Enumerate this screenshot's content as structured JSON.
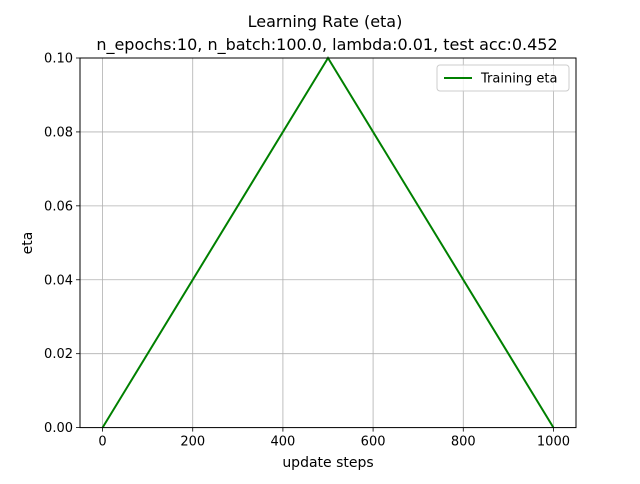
{
  "chart_data": {
    "type": "line",
    "title": "Learning Rate (eta)",
    "subtitle": "n_epochs:10, n_batch:100.0, lambda:0.01, test acc:0.452",
    "xlabel": "update steps",
    "ylabel": "eta",
    "xlim": [
      -50,
      1050
    ],
    "ylim": [
      0.0,
      0.1
    ],
    "x_ticks": [
      0,
      200,
      400,
      600,
      800,
      1000
    ],
    "x_tick_labels": [
      "0",
      "200",
      "400",
      "600",
      "800",
      "1000"
    ],
    "y_ticks": [
      0.0,
      0.02,
      0.04,
      0.06,
      0.08,
      0.1
    ],
    "y_tick_labels": [
      "0.00",
      "0.02",
      "0.04",
      "0.06",
      "0.08",
      "0.10"
    ],
    "grid": true,
    "legend": {
      "placement": "upper-right",
      "entries": [
        "Training eta"
      ]
    },
    "series": [
      {
        "name": "Training eta",
        "color": "#008000",
        "x": [
          0,
          500,
          1000
        ],
        "y": [
          0.0,
          0.1,
          0.0
        ]
      }
    ]
  }
}
